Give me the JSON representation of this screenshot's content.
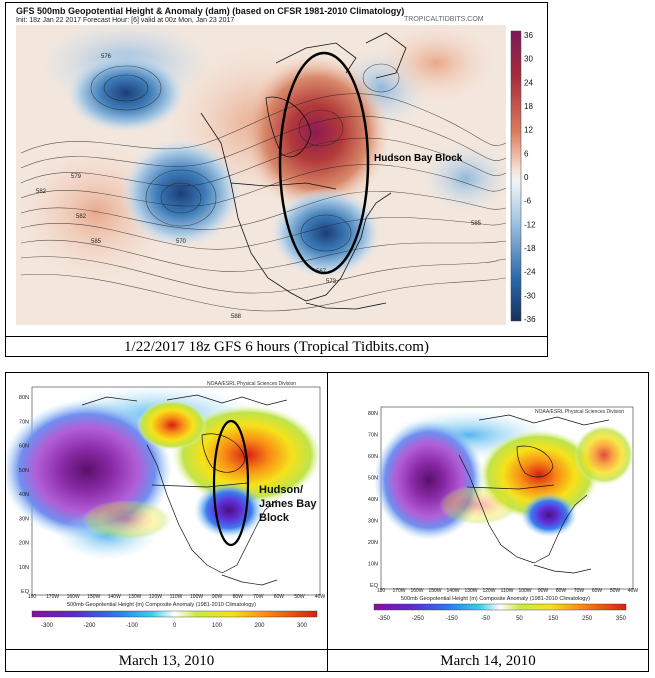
{
  "top": {
    "title_line1": "GFS 500mb Geopotential Height & Anomaly (dam) (based on CFSR 1981-2010 Climatology)",
    "title_line2": "Init: 18z Jan 22 2017   Forecast Hour: [6]   valid at 00z Mon, Jan 23 2017",
    "brand": "TROPICALTIDBITS.COM",
    "annotation": "Hudson Bay Block",
    "colorbar_ticks": [
      "36",
      "30",
      "24",
      "18",
      "12",
      "6",
      "0",
      "-6",
      "-12",
      "-18",
      "-24",
      "-30",
      "-36"
    ],
    "contour_labels": [
      "576",
      "579",
      "582",
      "585",
      "588",
      "570",
      "567",
      "573",
      "582",
      "585"
    ],
    "caption": "1/22/2017 18z GFS 6 hours (Tropical Tidbits.com)"
  },
  "bottom_left": {
    "header": "NOAA/ESRL Physical Sciences Division",
    "annotation_lines": [
      "Hudson/",
      "James Bay",
      "Block"
    ],
    "lat_labels": [
      "80N",
      "70N",
      "60N",
      "50N",
      "40N",
      "30N",
      "20N",
      "10N",
      "EQ"
    ],
    "lon_labels": [
      "180",
      "170W",
      "160W",
      "150W",
      "140W",
      "130W",
      "120W",
      "110W",
      "100W",
      "90W",
      "80W",
      "70W",
      "60W",
      "50W",
      "40W"
    ],
    "footer": "500mb Geopotential Height (m) Composite Anomaly (1981-2010 Climatology)",
    "colorbar_ticks": [
      "-300",
      "-200",
      "-100",
      "0",
      "100",
      "200",
      "300"
    ],
    "caption": "March 13, 2010"
  },
  "bottom_right": {
    "header": "NOAA/ESRL Physical Sciences Division",
    "lat_labels": [
      "80N",
      "70N",
      "60N",
      "50N",
      "40N",
      "30N",
      "20N",
      "10N",
      "EQ"
    ],
    "lon_labels": [
      "180",
      "170W",
      "160W",
      "150W",
      "140W",
      "130W",
      "120W",
      "110W",
      "100W",
      "90W",
      "80W",
      "70W",
      "60W",
      "50W",
      "40W"
    ],
    "footer": "500mb Geopotential Height (m) Composite Anomaly (1981-2010 Climatology)",
    "colorbar_ticks": [
      "-350",
      "-250",
      "-150",
      "-50",
      "50",
      "150",
      "250",
      "350"
    ],
    "caption": "March 14, 2010"
  }
}
